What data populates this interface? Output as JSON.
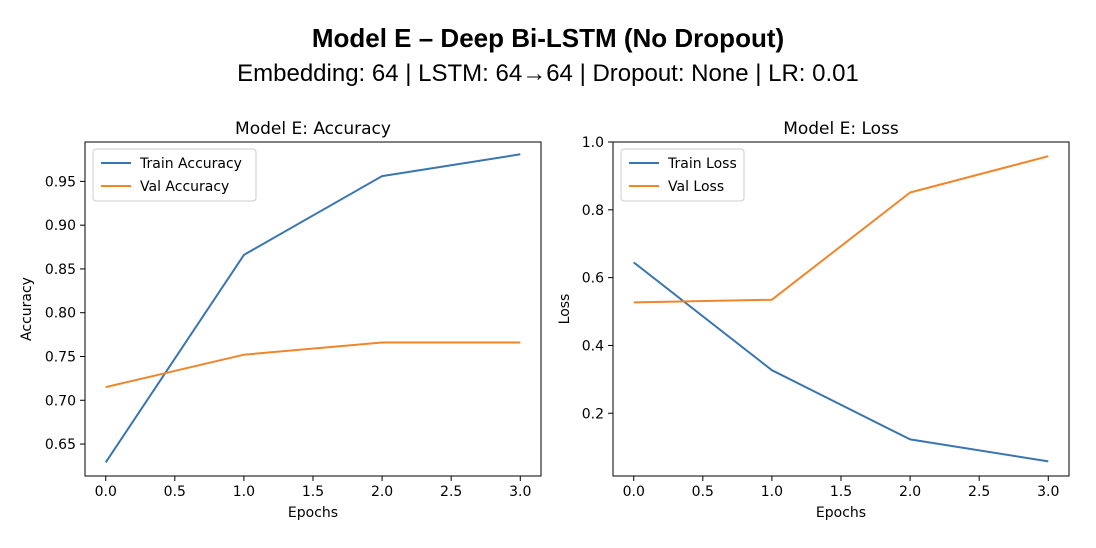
{
  "figure": {
    "title": "Model E – Deep Bi-LSTM (No Dropout)",
    "subtitle": "Embedding: 64 | LSTM: 64→64 | Dropout: None | LR: 0.01"
  },
  "colors": {
    "train": "#3a75b0",
    "val": "#f0862a"
  },
  "chart_data": [
    {
      "type": "line",
      "title": "Model E: Accuracy",
      "xlabel": "Epochs",
      "ylabel": "Accuracy",
      "x": [
        0,
        1,
        2,
        3
      ],
      "xlim": [
        -0.15,
        3.15
      ],
      "ylim": [
        0.6135,
        0.995
      ],
      "xticks": [
        0.0,
        0.5,
        1.0,
        1.5,
        2.0,
        2.5,
        3.0
      ],
      "yticks": [
        0.65,
        0.7,
        0.75,
        0.8,
        0.85,
        0.9,
        0.95
      ],
      "grid": false,
      "legend": "upper left",
      "series": [
        {
          "name": "Train Accuracy",
          "values": [
            0.629,
            0.866,
            0.956,
            0.981
          ]
        },
        {
          "name": "Val Accuracy",
          "values": [
            0.715,
            0.752,
            0.766,
            0.766
          ]
        }
      ]
    },
    {
      "type": "line",
      "title": "Model E: Loss",
      "xlabel": "Epochs",
      "ylabel": "Loss",
      "x": [
        0,
        1,
        2,
        3
      ],
      "xlim": [
        -0.15,
        3.15
      ],
      "ylim": [
        0.015,
        1.0
      ],
      "xticks": [
        0.0,
        0.5,
        1.0,
        1.5,
        2.0,
        2.5,
        3.0
      ],
      "yticks": [
        0.2,
        0.4,
        0.6,
        0.8,
        1.0
      ],
      "grid": false,
      "legend": "upper left",
      "series": [
        {
          "name": "Train Loss",
          "values": [
            0.645,
            0.327,
            0.123,
            0.058
          ]
        },
        {
          "name": "Val Loss",
          "values": [
            0.527,
            0.535,
            0.851,
            0.958
          ]
        }
      ]
    }
  ]
}
